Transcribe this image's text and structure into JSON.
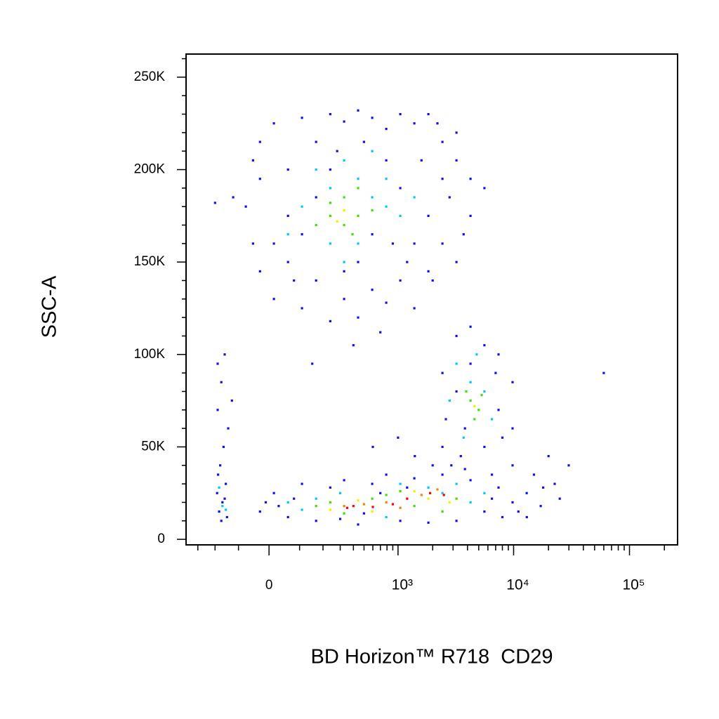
{
  "chart_data": {
    "type": "scatter",
    "xlabel": "BD Horizon™ R718  CD29",
    "ylabel": "SSC-A",
    "xscale": "biexponential",
    "xscale_width": 155,
    "xlim": [
      -388,
      260000
    ],
    "ylim": [
      -3000,
      262500
    ],
    "xticks": [
      0,
      {
        "value": 1000,
        "label": "10³"
      },
      {
        "value": 10000,
        "label": "10⁴"
      },
      {
        "value": 100000,
        "label": "10⁵"
      }
    ],
    "xminorticks": [
      -300,
      -200,
      -100,
      100,
      200,
      300,
      400,
      500,
      600,
      700,
      800,
      900,
      2000,
      3000,
      4000,
      5000,
      6000,
      7000,
      8000,
      9000,
      20000,
      30000,
      40000,
      50000,
      60000,
      70000,
      80000,
      90000,
      200000
    ],
    "yticks": [
      0,
      {
        "value": 50000,
        "label": "50K"
      },
      {
        "value": 100000,
        "label": "100K"
      },
      {
        "value": 150000,
        "label": "150K"
      },
      {
        "value": 200000,
        "label": "200K"
      },
      {
        "value": 250000,
        "label": "250K"
      }
    ],
    "yminorticks": [
      10000,
      20000,
      30000,
      40000,
      60000,
      70000,
      80000,
      90000,
      110000,
      120000,
      130000,
      140000,
      160000,
      170000,
      180000,
      190000,
      210000,
      220000,
      230000,
      240000,
      260000
    ],
    "series": [
      {
        "color": "#1010f0",
        "x": [
          -74,
          -28,
          15,
          60,
          109,
          167,
          239,
          327,
          442,
          592,
          789,
          1046,
          1387,
          1835,
          2427,
          3209,
          4244,
          5600,
          -50,
          -28,
          15,
          60,
          109,
          167,
          239,
          327,
          442,
          592,
          789,
          1046,
          1387,
          1835,
          2427,
          3209,
          4244,
          3209,
          2427,
          1835,
          1387,
          1046,
          789,
          592,
          442,
          327,
          239,
          167,
          109,
          60,
          15,
          -28,
          -50,
          2000,
          1200,
          700,
          400,
          150,
          2800,
          3700,
          900,
          500,
          280,
          80,
          1600,
          2200,
          -120,
          -187,
          -155,
          -170,
          -187,
          -140,
          -160,
          -175,
          -150,
          -190,
          -165,
          -180,
          -145,
          -170,
          -155,
          -185,
          -125,
          -200,
          -28,
          15,
          60,
          109,
          167,
          239,
          327,
          442,
          592,
          789,
          1046,
          1387,
          1835,
          2427,
          3209,
          4244,
          5600,
          7410,
          9800,
          12960,
          17130,
          22630,
          29900,
          20000,
          15000,
          11000,
          8000,
          6500,
          25000,
          13000,
          18000,
          30,
          -10,
          80,
          3800,
          2000,
          1200,
          700,
          500,
          300,
          2427,
          3209,
          4244,
          5600,
          7410,
          9800,
          7410,
          9800,
          2427,
          2900,
          3500,
          6500,
          4244,
          3209,
          2600,
          5600,
          8000,
          7000,
          3800,
          1400,
          1000,
          600,
          9800,
          60000
        ],
        "y": [
          180000,
          215000,
          225000,
          200000,
          228000,
          215000,
          230000,
          226000,
          232000,
          228000,
          222000,
          230000,
          225000,
          230000,
          215000,
          205000,
          195000,
          190000,
          160000,
          145000,
          130000,
          150000,
          125000,
          140000,
          118000,
          130000,
          120000,
          135000,
          128000,
          140000,
          125000,
          145000,
          160000,
          150000,
          175000,
          220000,
          195000,
          175000,
          160000,
          190000,
          205000,
          165000,
          150000,
          145000,
          200000,
          185000,
          165000,
          175000,
          160000,
          195000,
          205000,
          140000,
          150000,
          112000,
          105000,
          95000,
          185000,
          165000,
          160000,
          215000,
          210000,
          140000,
          205000,
          225000,
          185000,
          95000,
          100000,
          85000,
          70000,
          60000,
          50000,
          40000,
          30000,
          25000,
          20000,
          15000,
          12000,
          10000,
          22000,
          35000,
          75000,
          182000,
          15000,
          25000,
          12000,
          30000,
          10000,
          28000,
          32000,
          8000,
          30000,
          35000,
          10000,
          33000,
          9000,
          35000,
          10000,
          32000,
          15000,
          28000,
          20000,
          25000,
          18000,
          30000,
          40000,
          45000,
          35000,
          15000,
          12000,
          22000,
          22000,
          12000,
          28000,
          18000,
          20000,
          22000,
          38000,
          40000,
          28000,
          25000,
          14000,
          11000,
          90000,
          110000,
          115000,
          105000,
          100000,
          85000,
          70000,
          60000,
          50000,
          40000,
          45000,
          35000,
          95000,
          80000,
          65000,
          50000,
          55000,
          90000,
          60000,
          45000,
          55000,
          50000,
          40000,
          90000
        ]
      },
      {
        "color": "#00c8ff",
        "x": [
          167,
          239,
          327,
          442,
          592,
          789,
          109,
          239,
          442,
          789,
          1046,
          60,
          327,
          592,
          1387,
          -165,
          -180,
          -150,
          60,
          109,
          167,
          1046,
          1835,
          2427,
          3209,
          4244,
          5600,
          789,
          300,
          3209,
          4244,
          5600,
          6500,
          3700,
          4800,
          2800
        ],
        "y": [
          200000,
          190000,
          205000,
          195000,
          185000,
          180000,
          180000,
          160000,
          160000,
          195000,
          175000,
          165000,
          150000,
          210000,
          185000,
          18000,
          28000,
          16000,
          20000,
          16000,
          22000,
          30000,
          28000,
          25000,
          30000,
          20000,
          25000,
          12000,
          25000,
          95000,
          85000,
          80000,
          65000,
          55000,
          100000,
          75000
        ]
      },
      {
        "color": "#40e000",
        "x": [
          239,
          327,
          442,
          327,
          239,
          442,
          592,
          167,
          392,
          167,
          239,
          327,
          592,
          789,
          1387,
          2427,
          3209,
          1046,
          4244,
          5000,
          4600,
          3900,
          5300
        ],
        "y": [
          175000,
          185000,
          175000,
          170000,
          182000,
          190000,
          178000,
          170000,
          165000,
          18000,
          20000,
          14000,
          22000,
          24000,
          18000,
          15000,
          22000,
          26000,
          75000,
          70000,
          65000,
          80000,
          78000
        ]
      },
      {
        "color": "#f0f000",
        "x": [
          327,
          280,
          239,
          442,
          1387,
          1835,
          2800,
          592,
          4600
        ],
        "y": [
          178000,
          172000,
          16000,
          21000,
          26000,
          22000,
          20000,
          15000,
          72000
        ]
      },
      {
        "color": "#ff8000",
        "x": [
          327,
          789,
          1600,
          2200,
          1046,
          500
        ],
        "y": [
          18000,
          20000,
          24000,
          27000,
          17000,
          19000
        ]
      },
      {
        "color": "#ff0000",
        "x": [
          400,
          600,
          1200,
          1900,
          2500,
          350,
          900
        ],
        "y": [
          18000,
          17500,
          22000,
          25000,
          24000,
          17000,
          19000
        ]
      }
    ]
  }
}
